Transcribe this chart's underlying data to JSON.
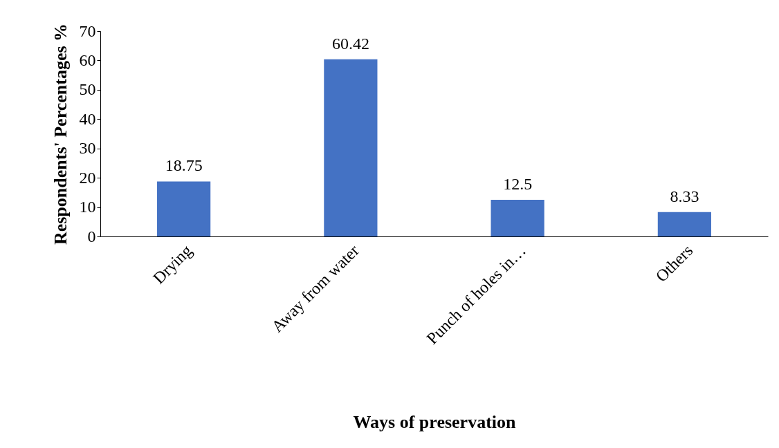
{
  "chart_data": {
    "type": "bar",
    "xlabel": "Ways of preservation",
    "ylabel": "Respondents' Percentages %",
    "categories": [
      "Drying",
      "Away from water",
      "Punch of holes in…",
      "Others"
    ],
    "values": [
      18.75,
      60.42,
      12.5,
      8.33
    ],
    "color": "#4472c4",
    "ylim": [
      0,
      70
    ],
    "yticks": [
      0,
      10,
      20,
      30,
      40,
      50,
      60,
      70
    ],
    "grid": false,
    "data_labels": true
  }
}
